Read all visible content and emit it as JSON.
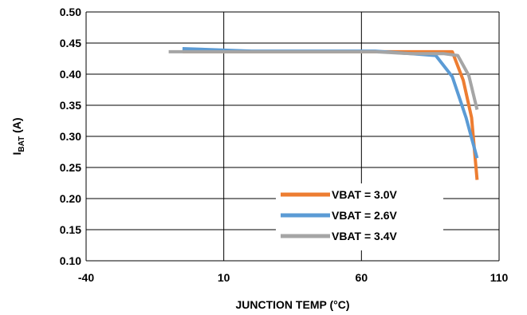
{
  "chart_data": {
    "type": "line",
    "title": "",
    "xlabel": "JUNCTION TEMP  (°C)",
    "ylabel_main": "I",
    "ylabel_sub": "BAT",
    "ylabel_unit": " (A)",
    "xlim": [
      -40,
      110
    ],
    "ylim": [
      0.1,
      0.5
    ],
    "x_ticks": [
      -40,
      10,
      60,
      110
    ],
    "x_tick_labels": [
      "-40",
      "10",
      "60",
      "110"
    ],
    "y_ticks": [
      0.1,
      0.15,
      0.2,
      0.25,
      0.3,
      0.35,
      0.4,
      0.45,
      0.5
    ],
    "y_tick_labels": [
      "0.10",
      "0.15",
      "0.20",
      "0.25",
      "0.30",
      "0.35",
      "0.40",
      "0.45",
      "0.50"
    ],
    "grid": true,
    "legend_position": "bottom-right",
    "series": [
      {
        "name": "VBAT = 3.0V",
        "color": "#ED7D31",
        "points": [
          [
            -5,
            0.436
          ],
          [
            20,
            0.436
          ],
          [
            65,
            0.436
          ],
          [
            80,
            0.436
          ],
          [
            93,
            0.436
          ],
          [
            97,
            0.39
          ],
          [
            100,
            0.33
          ],
          [
            102,
            0.23
          ]
        ]
      },
      {
        "name": "VBAT = 2.6V",
        "color": "#5B9BD5",
        "points": [
          [
            -5,
            0.441
          ],
          [
            20,
            0.437
          ],
          [
            65,
            0.437
          ],
          [
            78,
            0.433
          ],
          [
            87,
            0.43
          ],
          [
            93,
            0.396
          ],
          [
            98,
            0.33
          ],
          [
            102,
            0.265
          ]
        ]
      },
      {
        "name": "VBAT = 3.4V",
        "color": "#A5A5A5",
        "points": [
          [
            -10,
            0.436
          ],
          [
            20,
            0.436
          ],
          [
            65,
            0.436
          ],
          [
            78,
            0.433
          ],
          [
            90,
            0.433
          ],
          [
            95,
            0.43
          ],
          [
            99,
            0.398
          ],
          [
            102,
            0.343
          ]
        ]
      }
    ]
  }
}
